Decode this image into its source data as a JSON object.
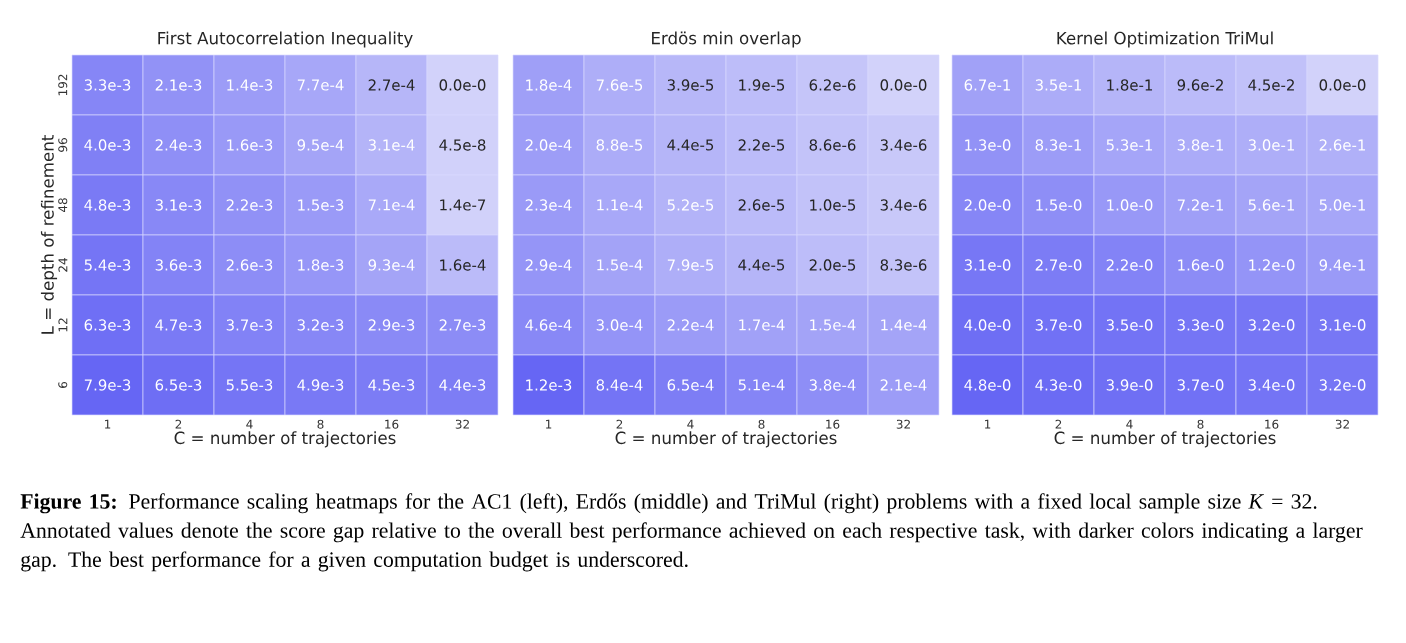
{
  "chart_data": [
    {
      "type": "heatmap",
      "title": "First Autocorrelation Inequality",
      "xlabel": "C = number of trajectories",
      "ylabel": "L = depth of refinement",
      "categories": [
        "1",
        "2",
        "4",
        "8",
        "16",
        "32"
      ],
      "y_categories": [
        "192",
        "96",
        "48",
        "24",
        "12",
        "6"
      ],
      "cells": [
        [
          0.0033,
          0.0021,
          0.0014,
          0.00077,
          0.00027,
          0.0
        ],
        [
          0.004,
          0.0024,
          0.0016,
          0.00095,
          0.00031,
          4.5e-08
        ],
        [
          0.0048,
          0.0031,
          0.0022,
          0.0015,
          0.00071,
          1.4e-07
        ],
        [
          0.0054,
          0.0036,
          0.0026,
          0.0018,
          0.00093,
          0.00016
        ],
        [
          0.0063,
          0.0047,
          0.0037,
          0.0032,
          0.0029,
          0.0027
        ],
        [
          0.0079,
          0.0065,
          0.0055,
          0.0049,
          0.0045,
          0.0044
        ]
      ],
      "cell_labels": [
        [
          "3.3e-3",
          "2.1e-3",
          "1.4e-3",
          "7.7e-4",
          "2.7e-4",
          "0.0e-0"
        ],
        [
          "4.0e-3",
          "2.4e-3",
          "1.6e-3",
          "9.5e-4",
          "3.1e-4",
          "4.5e-8"
        ],
        [
          "4.8e-3",
          "3.1e-3",
          "2.2e-3",
          "1.5e-3",
          "7.1e-4",
          "1.4e-7"
        ],
        [
          "5.4e-3",
          "3.6e-3",
          "2.6e-3",
          "1.8e-3",
          "9.3e-4",
          "1.6e-4"
        ],
        [
          "6.3e-3",
          "4.7e-3",
          "3.7e-3",
          "3.2e-3",
          "2.9e-3",
          "2.7e-3"
        ],
        [
          "7.9e-3",
          "6.5e-3",
          "5.5e-3",
          "4.9e-3",
          "4.5e-3",
          "4.4e-3"
        ]
      ],
      "annotations": [
        "**Figure 15:** Performance scaling heatmaps for the AC1 (left), Erdős (middle) and TriMul (right) problems with a fixed local sample size *K* = 32. Annotated values denote the score gap relative to the overall best performance achieved on each respective task, with darker colors indicating a larger gap. The best performance for a given computation budget is underscored."
      ]
    },
    {
      "type": "heatmap",
      "title": "Erdös min overlap",
      "xlabel": "C = number of trajectories",
      "tick_labels": "x",
      "categories": [
        "1",
        "2",
        "4",
        "8",
        "16",
        "32"
      ],
      "y_categories": [
        "192",
        "96",
        "48",
        "24",
        "12",
        "6"
      ],
      "cells": [
        [
          0.00018,
          7.6e-05,
          3.9e-05,
          1.9e-05,
          6.2e-06,
          0.0
        ],
        [
          0.0002,
          8.8e-05,
          4.4e-05,
          2.2e-05,
          8.6e-06,
          3.4e-06
        ],
        [
          0.00023,
          0.00011,
          5.2e-05,
          2.6e-05,
          1e-05,
          3.4e-06
        ],
        [
          0.00029,
          0.00015,
          7.9e-05,
          4.4e-05,
          2e-05,
          8.3e-06
        ],
        [
          0.00046,
          0.0003,
          0.00022,
          0.00017,
          0.00015,
          0.00014
        ],
        [
          0.0012,
          0.00084,
          0.00065,
          0.00051,
          0.00038,
          0.00021
        ]
      ],
      "cell_labels": [
        [
          "1.8e-4",
          "7.6e-5",
          "3.9e-5",
          "1.9e-5",
          "6.2e-6",
          "0.0e-0"
        ],
        [
          "2.0e-4",
          "8.8e-5",
          "4.4e-5",
          "2.2e-5",
          "8.6e-6",
          "3.4e-6"
        ],
        [
          "2.3e-4",
          "1.1e-4",
          "5.2e-5",
          "2.6e-5",
          "1.0e-5",
          "3.4e-6"
        ],
        [
          "2.9e-4",
          "1.5e-4",
          "7.9e-5",
          "4.4e-5",
          "2.0e-5",
          "8.3e-6"
        ],
        [
          "4.6e-4",
          "3.0e-4",
          "2.2e-4",
          "1.7e-4",
          "1.5e-4",
          "1.4e-4"
        ],
        [
          "1.2e-3",
          "8.4e-4",
          "6.5e-4",
          "5.1e-4",
          "3.8e-4",
          "2.1e-4"
        ]
      ]
    },
    {
      "type": "heatmap",
      "title": "Kernel Optimization TriMul",
      "xlabel": "C = number of trajectories",
      "tick_labels": "x",
      "categories": [
        "1",
        "2",
        "4",
        "8",
        "16",
        "32"
      ],
      "y_categories": [
        "192",
        "96",
        "48",
        "24",
        "12",
        "6"
      ],
      "cells": [
        [
          0.67,
          0.35,
          0.18,
          0.096,
          0.045,
          0.0
        ],
        [
          1.3,
          0.83,
          0.53,
          0.38,
          0.3,
          0.26
        ],
        [
          2.0,
          1.5,
          1.0,
          0.72,
          0.56,
          0.5
        ],
        [
          3.1,
          2.7,
          2.2,
          1.6,
          1.2,
          0.94
        ],
        [
          4.0,
          3.7,
          3.5,
          3.3,
          3.2,
          3.1
        ],
        [
          4.8,
          4.3,
          3.9,
          3.7,
          3.4,
          3.2
        ]
      ],
      "cell_labels": [
        [
          "6.7e-1",
          "3.5e-1",
          "1.8e-1",
          "9.6e-2",
          "4.5e-2",
          "0.0e-0"
        ],
        [
          "1.3e-0",
          "8.3e-1",
          "5.3e-1",
          "3.8e-1",
          "3.0e-1",
          "2.6e-1"
        ],
        [
          "2.0e-0",
          "1.5e-0",
          "1.0e-0",
          "7.2e-1",
          "5.6e-1",
          "5.0e-1"
        ],
        [
          "3.1e-0",
          "2.7e-0",
          "2.2e-0",
          "1.6e-0",
          "1.2e-0",
          "9.4e-1"
        ],
        [
          "4.0e-0",
          "3.7e-0",
          "3.5e-0",
          "3.3e-0",
          "3.2e-0",
          "3.1e-0"
        ],
        [
          "4.8e-0",
          "4.3e-0",
          "3.9e-0",
          "3.7e-0",
          "3.4e-0",
          "3.2e-0"
        ]
      ]
    }
  ]
}
